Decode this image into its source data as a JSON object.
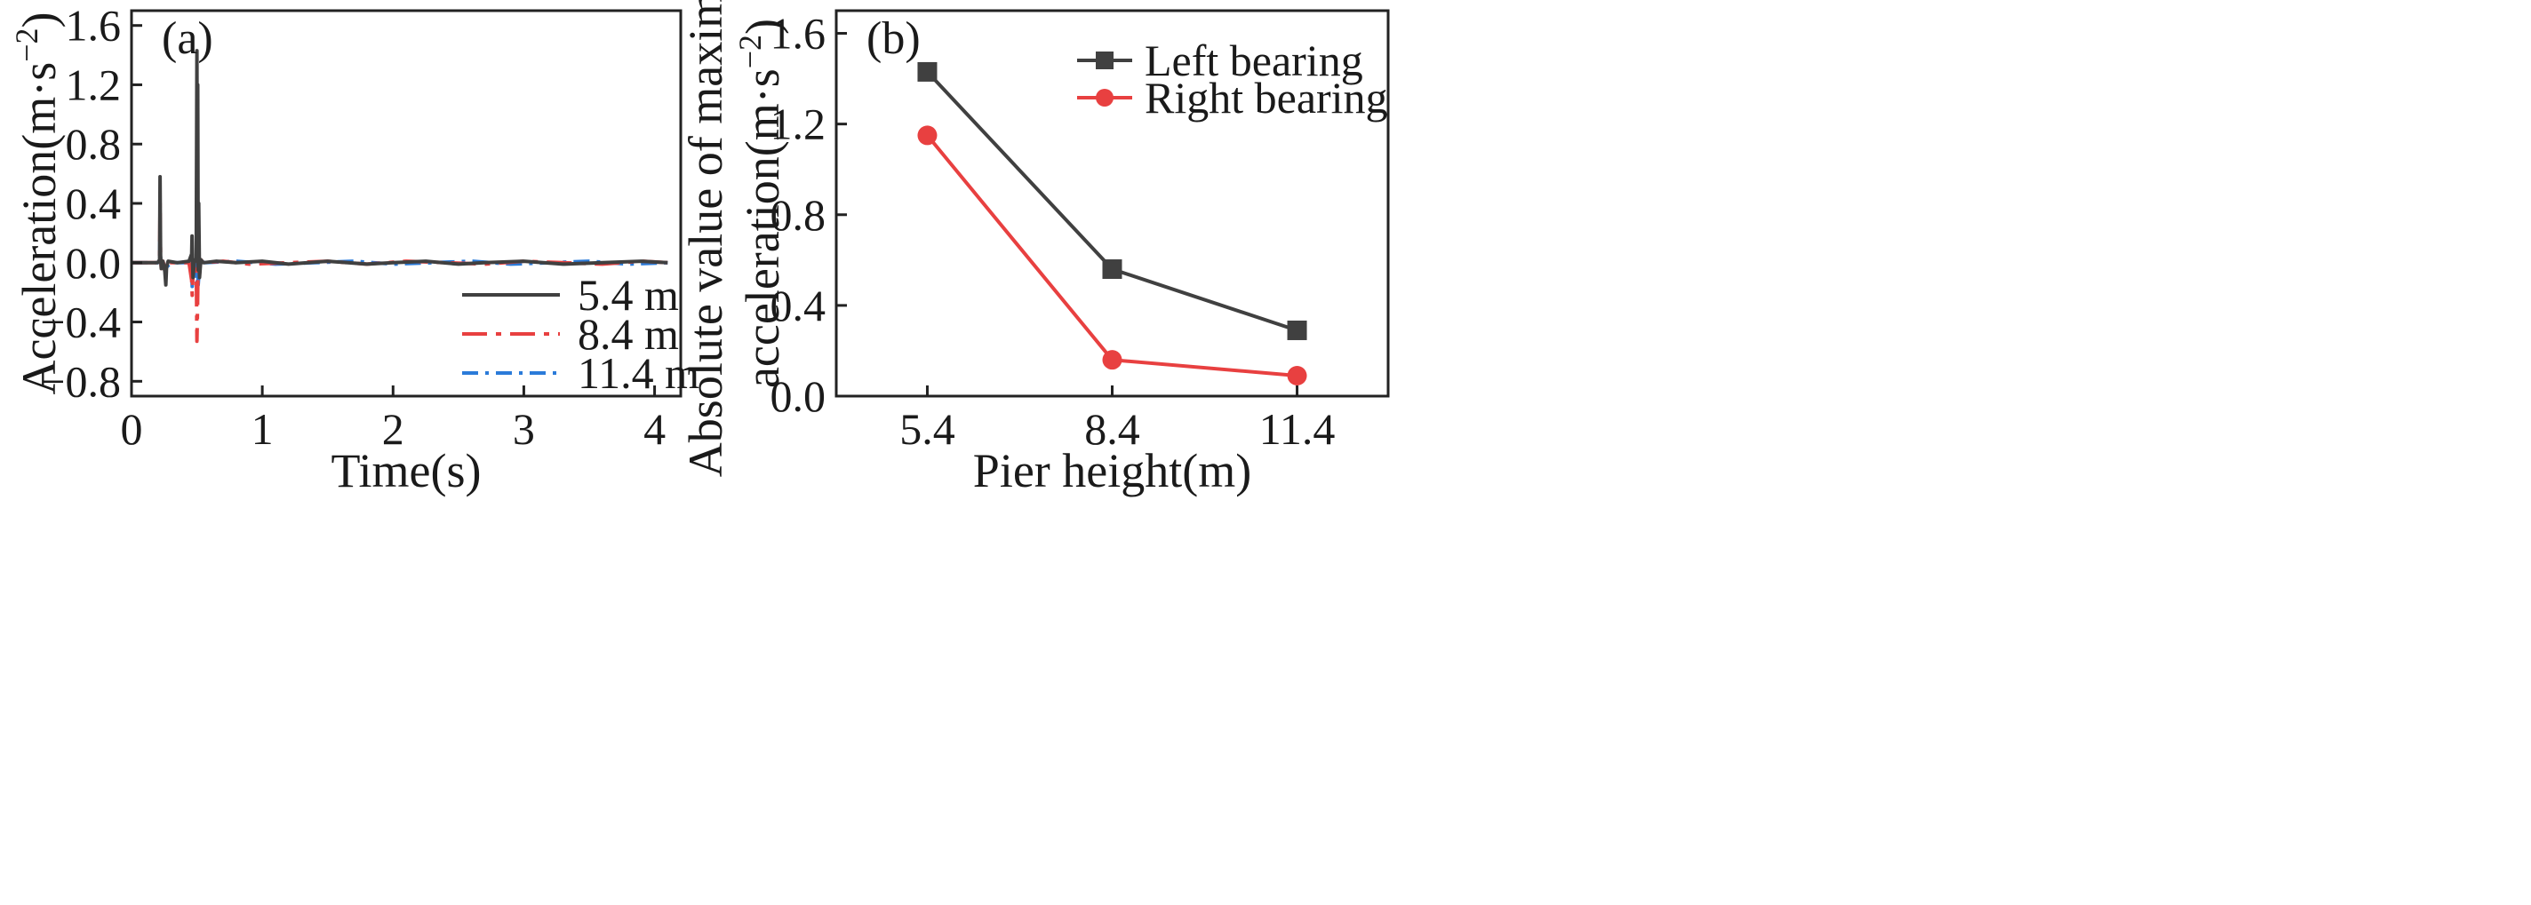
{
  "chart_data": [
    {
      "type": "line",
      "panel_label": "(a)",
      "xlabel": "Time(s)",
      "ylabel_main": "Acceleration(m·s",
      "ylabel_sup": "−2",
      "ylabel_tail": ")",
      "xlim": [
        0,
        4.2
      ],
      "ylim": [
        -0.9,
        1.7
      ],
      "xticks": [
        0,
        1,
        2,
        3,
        4
      ],
      "xtick_labels": [
        "0",
        "1",
        "2",
        "3",
        "4"
      ],
      "yticks": [
        -0.8,
        -0.4,
        0.0,
        0.4,
        0.8,
        1.2,
        1.6
      ],
      "ytick_labels": [
        "−0.8",
        "−0.4",
        "0.0",
        "0.4",
        "0.8",
        "1.2",
        "1.6"
      ],
      "legend_position": "lower-right",
      "series": [
        {
          "name": "5.4 m",
          "color": "#404040",
          "dash": "solid",
          "x": [
            0,
            0.2,
            0.215,
            0.218,
            0.222,
            0.228,
            0.24,
            0.255,
            0.262,
            0.268,
            0.28,
            0.35,
            0.44,
            0.46,
            0.463,
            0.466,
            0.47,
            0.48,
            0.495,
            0.5,
            0.503,
            0.506,
            0.51,
            0.514,
            0.52,
            0.53,
            0.55,
            0.65,
            0.8,
            1.0,
            1.2,
            1.5,
            1.8,
            2.0,
            2.25,
            2.5,
            2.7,
            3.0,
            3.3,
            3.6,
            3.9,
            4.1
          ],
          "y": [
            0,
            0,
            0.02,
            0.58,
            0.05,
            -0.04,
            0.01,
            -0.06,
            -0.15,
            -0.03,
            0.01,
            0.0,
            0.01,
            0.06,
            0.18,
            0.02,
            -0.1,
            0.0,
            0.03,
            1.43,
            0.1,
            1.2,
            -0.05,
            0.4,
            -0.1,
            0.02,
            0.0,
            0.01,
            0.0,
            0.01,
            -0.01,
            0.01,
            -0.01,
            0.0,
            0.01,
            -0.01,
            0.0,
            0.01,
            -0.01,
            0.0,
            0.01,
            0.0
          ]
        },
        {
          "name": "8.4 m",
          "color": "#e84040",
          "dash": "28 10 6 10",
          "x": [
            0,
            0.2,
            0.215,
            0.218,
            0.222,
            0.228,
            0.24,
            0.26,
            0.28,
            0.44,
            0.46,
            0.464,
            0.47,
            0.48,
            0.495,
            0.5,
            0.505,
            0.51,
            0.52,
            0.53,
            0.55,
            0.7,
            0.9,
            1.2,
            1.5,
            1.8,
            2.1,
            2.4,
            2.7,
            3.0,
            3.3,
            3.6,
            3.9,
            4.1
          ],
          "y": [
            0,
            0,
            0.02,
            0.4,
            0.03,
            -0.04,
            0.01,
            -0.05,
            0.0,
            0.0,
            -0.12,
            -0.22,
            -0.08,
            0.0,
            0.02,
            -0.53,
            -0.3,
            0.05,
            -0.08,
            0.02,
            0.0,
            0.01,
            -0.01,
            0.0,
            0.01,
            -0.01,
            0.01,
            0.0,
            -0.01,
            0.01,
            0.0,
            -0.01,
            0.01,
            0.0
          ]
        },
        {
          "name": "11.4 m",
          "color": "#2b7bd9",
          "dash": "18 8 4 8",
          "x": [
            0,
            0.2,
            0.215,
            0.218,
            0.222,
            0.23,
            0.25,
            0.27,
            0.3,
            0.44,
            0.46,
            0.464,
            0.47,
            0.485,
            0.495,
            0.5,
            0.505,
            0.51,
            0.52,
            0.53,
            0.56,
            0.8,
            1.1,
            1.4,
            1.7,
            2.0,
            2.3,
            2.6,
            2.9,
            3.2,
            3.5,
            3.8,
            4.1
          ],
          "y": [
            0,
            0,
            0.01,
            0.27,
            0.02,
            -0.03,
            0.01,
            -0.03,
            0.0,
            0.0,
            -0.06,
            -0.16,
            -0.04,
            0.0,
            0.02,
            -0.26,
            0.03,
            -0.15,
            -0.02,
            0.01,
            0.0,
            0.01,
            -0.01,
            0.0,
            0.01,
            -0.01,
            0.0,
            0.01,
            -0.01,
            0.0,
            0.01,
            -0.01,
            0.0
          ]
        }
      ]
    },
    {
      "type": "line",
      "panel_label": "(b)",
      "xlabel": "Pier height(m)",
      "ylabel_line1": "Absolute value of maximum",
      "ylabel_line2_main": "acceleration(m·s",
      "ylabel_line2_sup": "−2",
      "ylabel_line2_tail": ")",
      "categories": [
        "5.4",
        "8.4",
        "11.4"
      ],
      "ylim": [
        0.0,
        1.7
      ],
      "yticks": [
        0.0,
        0.4,
        0.8,
        1.2,
        1.6
      ],
      "ytick_labels": [
        "0.0",
        "0.4",
        "0.8",
        "1.2",
        "1.6"
      ],
      "legend_position": "top-right",
      "series": [
        {
          "name": "Left bearing",
          "color": "#404040",
          "marker": "square",
          "values": [
            1.43,
            0.56,
            0.29
          ]
        },
        {
          "name": "Right bearing",
          "color": "#e84040",
          "marker": "circle",
          "values": [
            1.15,
            0.16,
            0.09
          ]
        }
      ]
    }
  ]
}
